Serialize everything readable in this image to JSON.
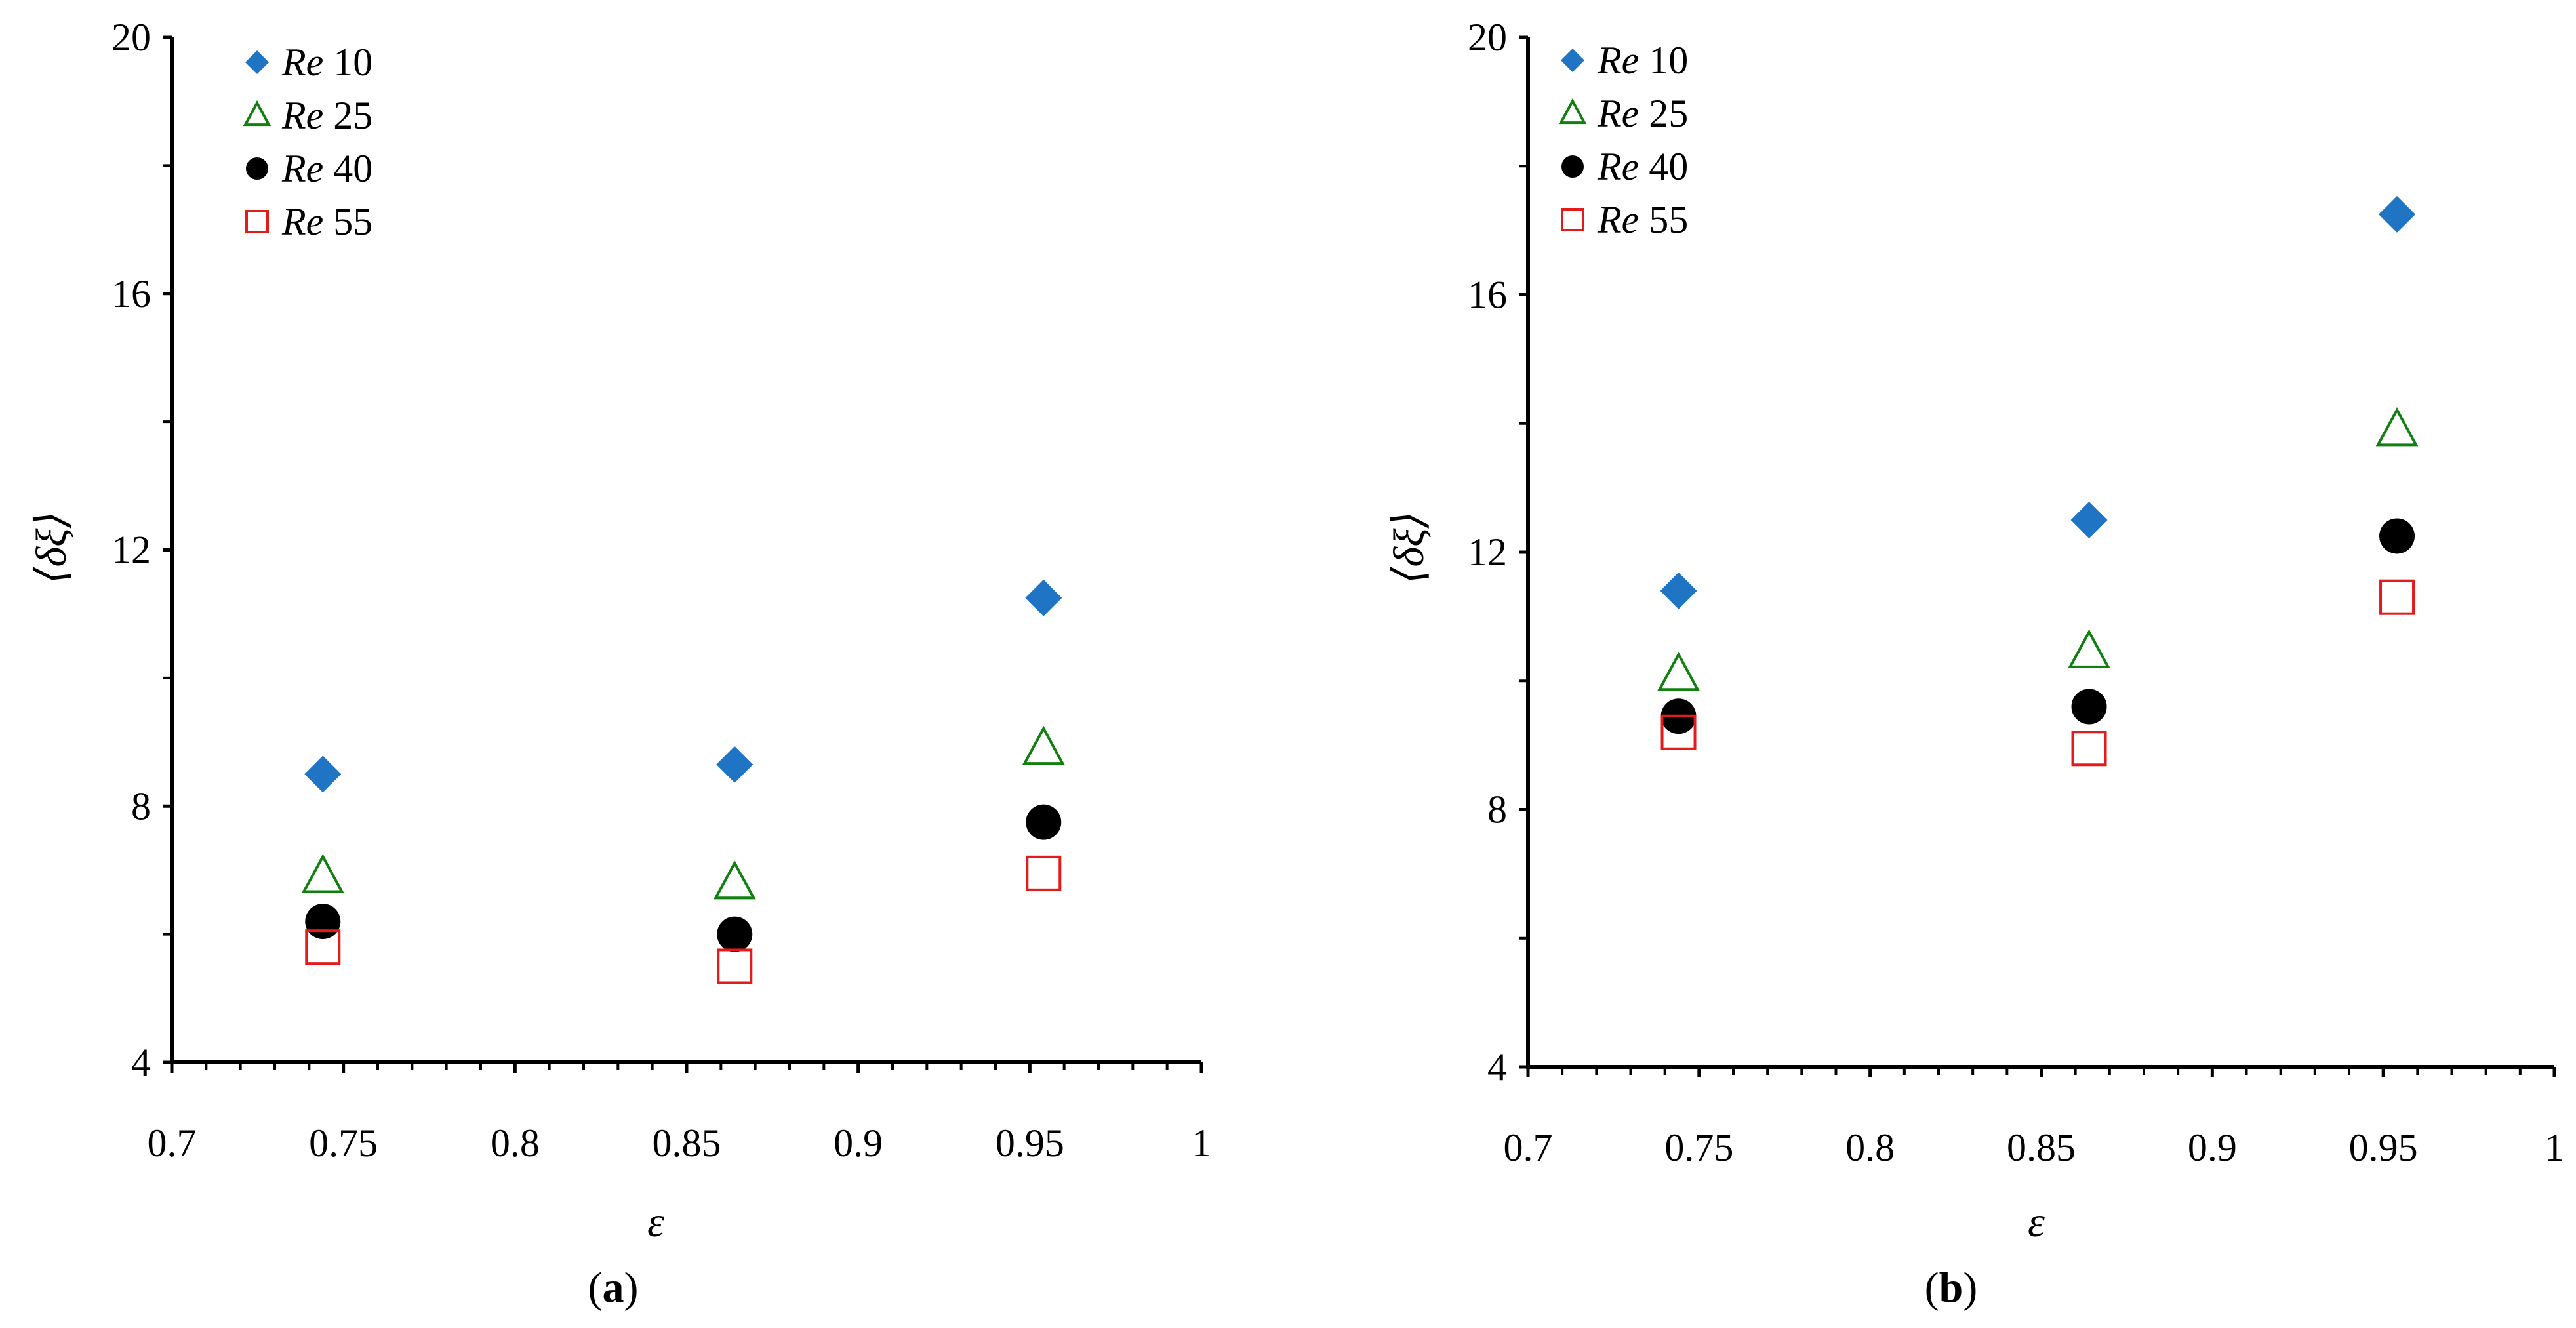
{
  "chart_data": [
    {
      "type": "scatter",
      "panel": "a",
      "panel_label": "a",
      "xlabel": "ε",
      "ylabel": "⟨δξ⟩",
      "xlim": [
        0.7,
        1.0
      ],
      "ylim": [
        4,
        20
      ],
      "x_ticks": [
        0.7,
        0.75,
        0.8,
        0.85,
        0.9,
        0.95,
        1.0
      ],
      "x_tick_labels": [
        "0.7",
        "0.75",
        "0.8",
        "0.85",
        "0.9",
        "0.95",
        "1"
      ],
      "y_ticks": [
        4,
        8,
        12,
        16,
        20
      ],
      "y_tick_labels": [
        "4",
        "8",
        "12",
        "16",
        "20"
      ],
      "legend_position": "top-left",
      "x": [
        0.744,
        0.864,
        0.954
      ],
      "series": [
        {
          "name": "Re 10",
          "re_prefix": "Re",
          "re_value": "10",
          "marker": "diamond",
          "color": "#1f74c4",
          "values": [
            8.5,
            8.65,
            11.25
          ]
        },
        {
          "name": "Re 25",
          "re_prefix": "Re",
          "re_value": "25",
          "marker": "triangle",
          "color": "#118011",
          "values": [
            6.9,
            6.8,
            8.9
          ]
        },
        {
          "name": "Re 40",
          "re_prefix": "Re",
          "re_value": "40",
          "marker": "circle",
          "color": "#000000",
          "values": [
            6.2,
            6.0,
            7.75
          ]
        },
        {
          "name": "Re 55",
          "re_prefix": "Re",
          "re_value": "55",
          "marker": "square",
          "color": "#e31b1b",
          "values": [
            5.8,
            5.5,
            6.95
          ]
        }
      ]
    },
    {
      "type": "scatter",
      "panel": "b",
      "panel_label": "b",
      "xlabel": "ε",
      "ylabel": "⟨δξ⟩",
      "xlim": [
        0.7,
        1.0
      ],
      "ylim": [
        4,
        20
      ],
      "x_ticks": [
        0.7,
        0.75,
        0.8,
        0.85,
        0.9,
        0.95,
        1.0
      ],
      "x_tick_labels": [
        "0.7",
        "0.75",
        "0.8",
        "0.85",
        "0.9",
        "0.95",
        "1"
      ],
      "y_ticks": [
        4,
        8,
        12,
        16,
        20
      ],
      "y_tick_labels": [
        "4",
        "8",
        "12",
        "16",
        "20"
      ],
      "legend_position": "top-left",
      "x": [
        0.744,
        0.864,
        0.954
      ],
      "series": [
        {
          "name": "Re 10",
          "re_prefix": "Re",
          "re_value": "10",
          "marker": "diamond",
          "color": "#1f74c4",
          "values": [
            11.4,
            12.5,
            17.25
          ]
        },
        {
          "name": "Re 25",
          "re_prefix": "Re",
          "re_value": "25",
          "marker": "triangle",
          "color": "#118011",
          "values": [
            10.1,
            10.45,
            13.9
          ]
        },
        {
          "name": "Re 40",
          "re_prefix": "Re",
          "re_value": "40",
          "marker": "circle",
          "color": "#000000",
          "values": [
            9.45,
            9.6,
            12.25
          ]
        },
        {
          "name": "Re 55",
          "re_prefix": "Re",
          "re_value": "55",
          "marker": "square",
          "color": "#e31b1b",
          "values": [
            9.2,
            8.95,
            11.3
          ]
        }
      ]
    }
  ]
}
